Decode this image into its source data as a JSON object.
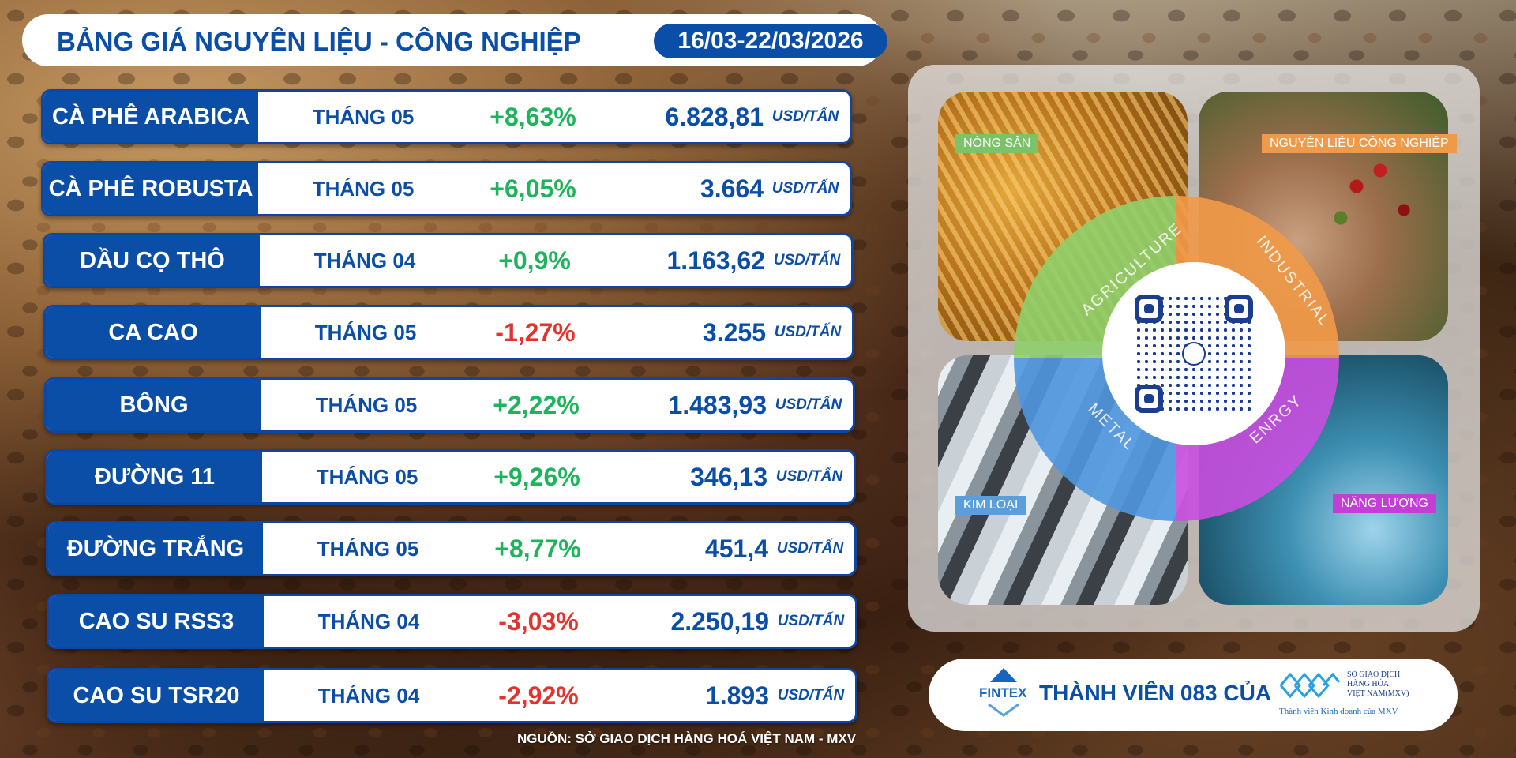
{
  "header": {
    "title": "BẢNG GIÁ NGUYÊN LIỆU - CÔNG NGHIỆP",
    "date_range": "16/03-22/03/2026"
  },
  "prices": [
    {
      "name": "CÀ PHÊ ARABICA",
      "month": "THÁNG 05",
      "change": "+8,63%",
      "price": "6.828,81",
      "unit": "USD/TẤN"
    },
    {
      "name": "CÀ PHÊ ROBUSTA",
      "month": "THÁNG 05",
      "change": "+6,05%",
      "price": "3.664",
      "unit": "USD/TẤN"
    },
    {
      "name": "DẦU CỌ THÔ",
      "month": "THÁNG 04",
      "change": "+0,9%",
      "price": "1.163,62",
      "unit": "USD/TẤN"
    },
    {
      "name": "CA CAO",
      "month": "THÁNG 05",
      "change": "-1,27%",
      "price": "3.255",
      "unit": "USD/TẤN"
    },
    {
      "name": "BÔNG",
      "month": "THÁNG 05",
      "change": "+2,22%",
      "price": "1.483,93",
      "unit": "USD/TẤN"
    },
    {
      "name": "ĐƯỜNG 11",
      "month": "THÁNG 05",
      "change": "+9,26%",
      "price": "346,13",
      "unit": "USD/TẤN"
    },
    {
      "name": "ĐƯỜNG TRẮNG",
      "month": "THÁNG 05",
      "change": "+8,77%",
      "price": "451,4",
      "unit": "USD/TẤN"
    },
    {
      "name": "CAO SU RSS3",
      "month": "THÁNG 04",
      "change": "-3,03%",
      "price": "2.250,19",
      "unit": "USD/TẤN"
    },
    {
      "name": "CAO SU TSR20",
      "month": "THÁNG 04",
      "change": "-2,92%",
      "price": "1.893",
      "unit": "USD/TẤN"
    }
  ],
  "colors": {
    "primary": "#0b4ea8",
    "positive": "#1fb35c",
    "negative": "#e2342d"
  },
  "source": "NGUỒN: SỞ GIAO DỊCH HÀNG HOÁ VIỆT NAM - MXV",
  "categories": {
    "agriculture": {
      "label": "NÔNG SẢN",
      "ring": "AGRICULTURE"
    },
    "industrial": {
      "label": "NGUYÊN LIỆU CÔNG NGHIỆP",
      "ring": "INDUSTRIAL"
    },
    "metal": {
      "label": "KIM LOẠI",
      "ring": "METAL"
    },
    "energy": {
      "label": "NĂNG LƯỢNG",
      "ring": "ENRGY"
    }
  },
  "member": {
    "logo_text": "FINTEX",
    "text": "THÀNH VIÊN 083 CỦA",
    "mxv_name": [
      "SỞ GIAO DỊCH",
      "HÀNG HÓA",
      "VIỆT NAM(MXV)"
    ],
    "mxv_sub": "Thành viên Kinh doanh của MXV"
  }
}
